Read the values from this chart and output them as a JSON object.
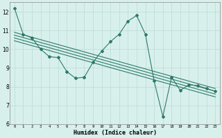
{
  "line_color": "#2D7A6A",
  "bg_color": "#D8F0EC",
  "grid_color": "#C0DDD8",
  "xlabel": "Humidex (Indice chaleur)",
  "xlim": [
    -0.5,
    23.5
  ],
  "ylim": [
    6,
    12.5
  ],
  "yticks": [
    6,
    7,
    8,
    9,
    10,
    11,
    12
  ],
  "xticks": [
    0,
    1,
    2,
    3,
    4,
    5,
    6,
    7,
    8,
    9,
    10,
    11,
    12,
    13,
    14,
    15,
    16,
    17,
    18,
    19,
    20,
    21,
    22,
    23
  ],
  "line1_x": [
    0,
    1,
    2,
    3,
    4,
    5,
    6,
    7,
    8,
    9,
    10,
    11,
    12,
    13,
    14,
    15,
    16,
    17,
    18,
    19,
    20,
    21,
    22,
    23
  ],
  "line1_y": [
    12.2,
    10.8,
    10.6,
    10.0,
    9.6,
    9.55,
    8.8,
    8.45,
    8.5,
    9.3,
    9.9,
    10.4,
    10.8,
    11.5,
    11.8,
    10.8,
    8.3,
    6.4,
    8.5,
    7.8,
    8.1,
    8.05,
    7.9,
    7.75
  ],
  "line2_x": [
    0,
    23
  ],
  "line2_y": [
    10.9,
    7.9
  ],
  "line3_x": [
    0,
    23
  ],
  "line3_y": [
    10.75,
    7.75
  ],
  "line4_x": [
    0,
    23
  ],
  "line4_y": [
    10.6,
    7.6
  ],
  "line5_x": [
    0,
    23
  ],
  "line5_y": [
    10.45,
    7.45
  ]
}
